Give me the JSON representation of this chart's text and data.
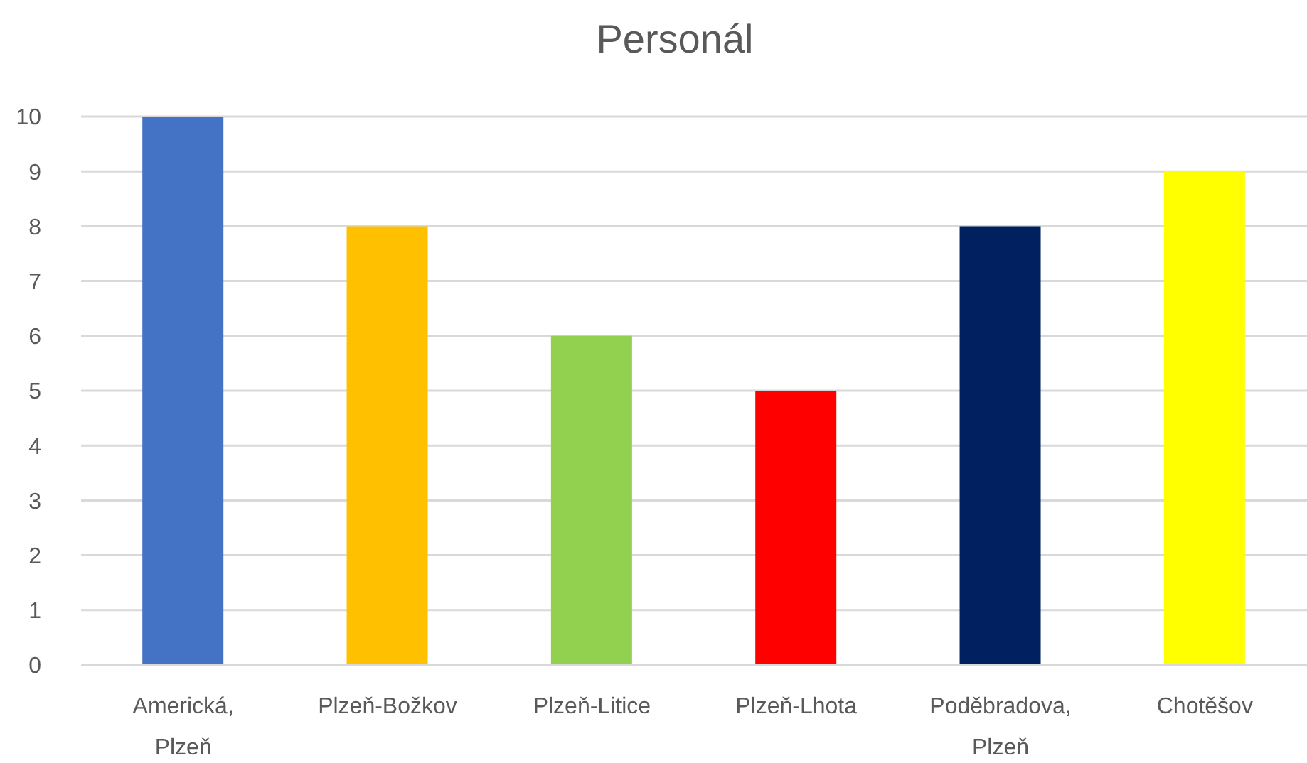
{
  "chart_data": {
    "type": "bar",
    "title": "Personál",
    "categories": [
      "Americká, Plzeň",
      "Plzeň-Božkov",
      "Plzeň-Litice",
      "Plzeň-Lhota",
      "Poděbradova, Plzeň",
      "Chotěšov"
    ],
    "values": [
      10,
      8,
      6,
      5,
      8,
      9
    ],
    "colors": [
      "#4472c4",
      "#ffc000",
      "#92d050",
      "#ff0000",
      "#002060",
      "#ffff00"
    ],
    "ylim": [
      0,
      10
    ],
    "yticks": [
      0,
      1,
      2,
      3,
      4,
      5,
      6,
      7,
      8,
      9,
      10
    ],
    "grid": "y"
  }
}
